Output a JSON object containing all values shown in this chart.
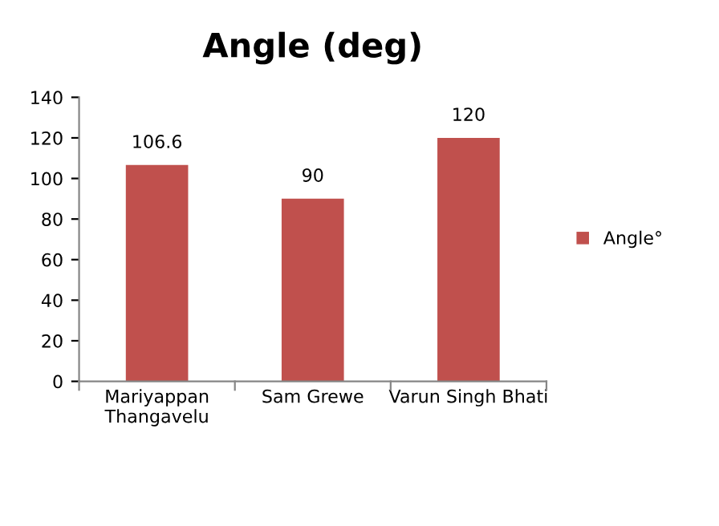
{
  "chart_data": {
    "type": "bar",
    "title": "Angle (deg)",
    "categories": [
      "Mariyappan Thangavelu",
      "Sam Grewe",
      "Varun Singh Bhati"
    ],
    "series": [
      {
        "name": "Angle°",
        "color": "#c0504d",
        "values": [
          106.6,
          90,
          120
        ]
      }
    ],
    "ylim": [
      0,
      140
    ],
    "yticks": [
      0,
      20,
      40,
      60,
      80,
      100,
      120,
      140
    ],
    "grid": false,
    "legend": "right",
    "data_labels": true
  }
}
